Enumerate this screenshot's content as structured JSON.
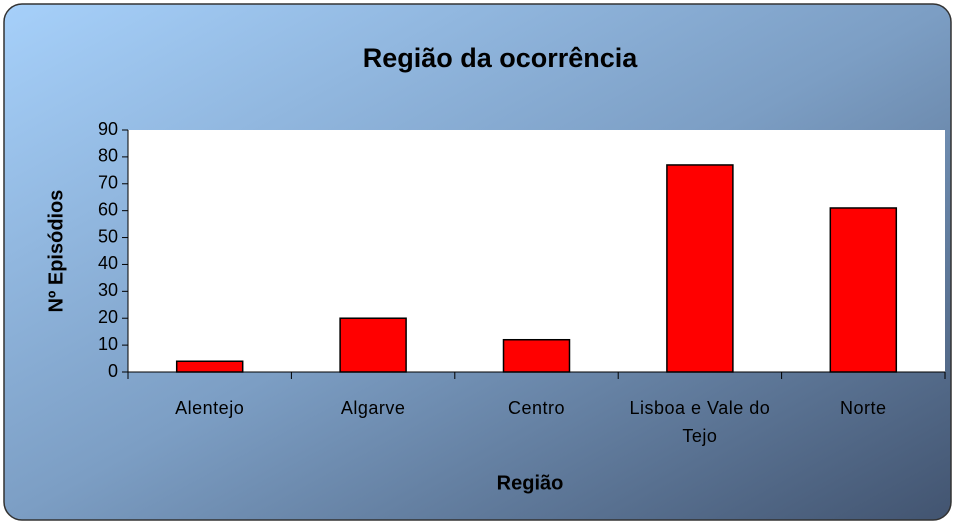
{
  "chart_data": {
    "type": "bar",
    "title": "Região da ocorrência",
    "x_label": "Região",
    "y_label": "Nº Episódios",
    "categories": [
      "Alentejo",
      "Algarve",
      "Centro",
      "Lisboa e Vale do Tejo",
      "Norte"
    ],
    "values": [
      4,
      20,
      12,
      77,
      61
    ],
    "color": "#ff0000",
    "ylim": [
      0,
      90
    ],
    "yticks": [
      0,
      10,
      20,
      30,
      40,
      50,
      60,
      70,
      80,
      90
    ],
    "grid": false
  }
}
